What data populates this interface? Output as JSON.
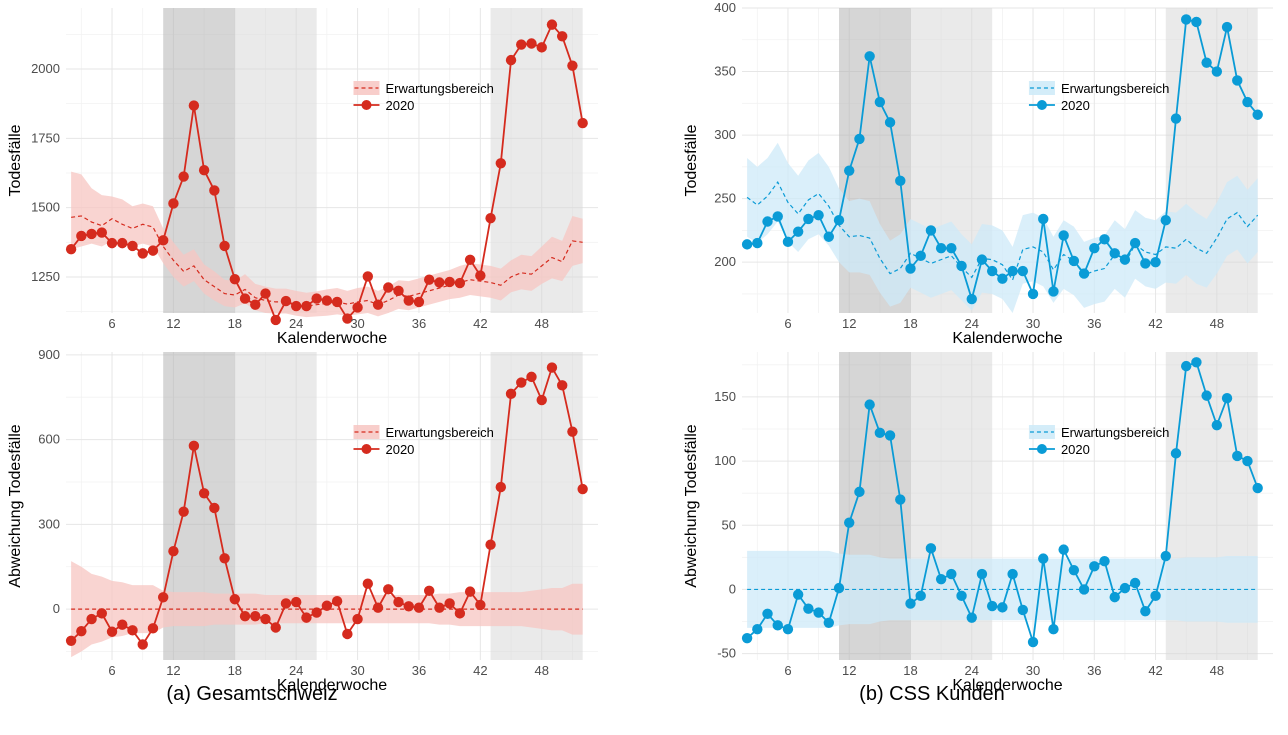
{
  "captions": {
    "left": "(a) Gesamtschweiz",
    "right": "(b) CSS Kunden"
  },
  "chart_data": [
    {
      "type": "line",
      "panel": "top-left",
      "xlabel": "Kalenderwoche",
      "ylabel": "Todesfälle",
      "xlim": [
        1.5,
        53.5
      ],
      "ylim": [
        1120,
        2220
      ],
      "xticks": [
        6,
        12,
        18,
        24,
        30,
        36,
        42,
        48
      ],
      "yticks": [
        1250,
        1500,
        1750,
        2000
      ],
      "color": "#d52b1e",
      "band_color": "#f7c6c2",
      "shaded_regions": [
        {
          "from": 11,
          "to": 18,
          "shade": "dark"
        },
        {
          "from": 18,
          "to": 26,
          "shade": "light"
        },
        {
          "from": 43,
          "to": 52,
          "shade": "light"
        }
      ],
      "legend": {
        "band": "Erwartungsbereich",
        "line": "2020",
        "position": "center-right"
      },
      "series": [
        {
          "name": "2020",
          "x": [
            2,
            3,
            4,
            5,
            6,
            7,
            8,
            9,
            10,
            11,
            12,
            13,
            14,
            15,
            16,
            17,
            18,
            19,
            20,
            21,
            22,
            23,
            24,
            25,
            26,
            27,
            28,
            29,
            30,
            31,
            32,
            33,
            34,
            35,
            36,
            37,
            38,
            39,
            40,
            41,
            42,
            43,
            44,
            45,
            46,
            47,
            48,
            49,
            50,
            51,
            52
          ],
          "values": [
            1350,
            1398,
            1405,
            1410,
            1372,
            1372,
            1362,
            1335,
            1345,
            1382,
            1515,
            1612,
            1868,
            1635,
            1562,
            1362,
            1242,
            1172,
            1150,
            1190,
            1095,
            1163,
            1145,
            1145,
            1172,
            1165,
            1160,
            1100,
            1140,
            1252,
            1150,
            1212,
            1200,
            1165,
            1160,
            1240,
            1230,
            1232,
            1228,
            1312,
            1255,
            1462,
            1660,
            2032,
            2088,
            2092,
            2078,
            2160,
            2118,
            2012,
            1805
          ]
        }
      ],
      "expectation": {
        "x": [
          2,
          3,
          4,
          5,
          6,
          7,
          8,
          9,
          10,
          11,
          12,
          13,
          14,
          15,
          16,
          17,
          18,
          19,
          20,
          21,
          22,
          23,
          24,
          25,
          26,
          27,
          28,
          29,
          30,
          31,
          32,
          33,
          34,
          35,
          36,
          37,
          38,
          39,
          40,
          41,
          42,
          43,
          44,
          45,
          46,
          47,
          48,
          49,
          50,
          51,
          52
        ],
        "mean": [
          1465,
          1470,
          1448,
          1435,
          1460,
          1440,
          1425,
          1440,
          1430,
          1360,
          1310,
          1270,
          1290,
          1240,
          1215,
          1190,
          1185,
          1205,
          1175,
          1165,
          1160,
          1160,
          1152,
          1145,
          1150,
          1155,
          1160,
          1152,
          1160,
          1165,
          1150,
          1165,
          1185,
          1180,
          1190,
          1200,
          1210,
          1220,
          1230,
          1240,
          1235,
          1230,
          1220,
          1250,
          1265,
          1260,
          1290,
          1320,
          1305,
          1380,
          1375
        ],
        "lower": [
          1350,
          1360,
          1370,
          1360,
          1380,
          1380,
          1360,
          1370,
          1360,
          1300,
          1250,
          1215,
          1235,
          1190,
          1165,
          1145,
          1140,
          1155,
          1130,
          1120,
          1118,
          1118,
          1110,
          1105,
          1108,
          1110,
          1115,
          1110,
          1115,
          1120,
          1108,
          1120,
          1135,
          1130,
          1140,
          1150,
          1160,
          1170,
          1175,
          1185,
          1180,
          1175,
          1165,
          1195,
          1205,
          1200,
          1225,
          1245,
          1235,
          1290,
          1300
        ],
        "upper": [
          1630,
          1620,
          1570,
          1545,
          1540,
          1530,
          1505,
          1515,
          1505,
          1425,
          1375,
          1330,
          1350,
          1295,
          1270,
          1240,
          1235,
          1260,
          1225,
          1215,
          1208,
          1208,
          1200,
          1193,
          1198,
          1205,
          1210,
          1200,
          1210,
          1215,
          1200,
          1215,
          1238,
          1235,
          1245,
          1255,
          1265,
          1275,
          1290,
          1300,
          1295,
          1290,
          1280,
          1310,
          1330,
          1325,
          1360,
          1395,
          1380,
          1470,
          1460
        ]
      }
    },
    {
      "type": "line",
      "panel": "bottom-left",
      "xlabel": "Kalenderwoche",
      "ylabel": "Abweichung Todesfälle",
      "xlim": [
        1.5,
        53.5
      ],
      "ylim": [
        -180,
        910
      ],
      "xticks": [
        6,
        12,
        18,
        24,
        30,
        36,
        42,
        48
      ],
      "yticks": [
        0,
        300,
        600,
        900
      ],
      "color": "#d52b1e",
      "band_color": "#f7c6c2",
      "shaded_regions": [
        {
          "from": 11,
          "to": 18,
          "shade": "dark"
        },
        {
          "from": 18,
          "to": 26,
          "shade": "light"
        },
        {
          "from": 43,
          "to": 52,
          "shade": "light"
        }
      ],
      "legend": {
        "band": "Erwartungsbereich",
        "line": "2020",
        "position": "center-right"
      },
      "series": [
        {
          "name": "2020",
          "x": [
            2,
            3,
            4,
            5,
            6,
            7,
            8,
            9,
            10,
            11,
            12,
            13,
            14,
            15,
            16,
            17,
            18,
            19,
            20,
            21,
            22,
            23,
            24,
            25,
            26,
            27,
            28,
            29,
            30,
            31,
            32,
            33,
            34,
            35,
            36,
            37,
            38,
            39,
            40,
            41,
            42,
            43,
            44,
            45,
            46,
            47,
            48,
            49,
            50,
            51,
            52
          ],
          "values": [
            -112,
            -78,
            -35,
            -15,
            -80,
            -55,
            -75,
            -125,
            -68,
            42,
            205,
            345,
            578,
            410,
            358,
            180,
            35,
            -25,
            -25,
            -35,
            -65,
            20,
            25,
            -30,
            -12,
            12,
            28,
            -88,
            -35,
            90,
            5,
            70,
            25,
            10,
            5,
            65,
            5,
            20,
            -15,
            62,
            15,
            228,
            432,
            762,
            802,
            822,
            740,
            855,
            792,
            628,
            425
          ]
        }
      ],
      "expectation": {
        "mean": 0,
        "half_width": [
          170,
          150,
          125,
          115,
          100,
          95,
          85,
          85,
          85,
          65,
          60,
          60,
          60,
          60,
          55,
          55,
          55,
          55,
          55,
          50,
          50,
          50,
          50,
          50,
          50,
          50,
          50,
          50,
          50,
          50,
          50,
          50,
          50,
          50,
          50,
          50,
          55,
          55,
          60,
          60,
          60,
          60,
          60,
          60,
          60,
          65,
          70,
          75,
          75,
          90,
          90
        ]
      }
    },
    {
      "type": "line",
      "panel": "top-right",
      "xlabel": "Kalenderwoche",
      "ylabel": "Todesfälle",
      "xlim": [
        1.5,
        53.5
      ],
      "ylim": [
        160,
        400
      ],
      "xticks": [
        6,
        12,
        18,
        24,
        30,
        36,
        42,
        48
      ],
      "yticks": [
        200,
        250,
        300,
        350,
        400
      ],
      "color": "#0a9bd6",
      "band_color": "#cdeaf8",
      "shaded_regions": [
        {
          "from": 11,
          "to": 18,
          "shade": "dark"
        },
        {
          "from": 18,
          "to": 26,
          "shade": "light"
        },
        {
          "from": 43,
          "to": 52,
          "shade": "light"
        }
      ],
      "legend": {
        "band": "Erwartungsbereich",
        "line": "2020",
        "position": "center-right"
      },
      "series": [
        {
          "name": "2020",
          "x": [
            2,
            3,
            4,
            5,
            6,
            7,
            8,
            9,
            10,
            11,
            12,
            13,
            14,
            15,
            16,
            17,
            18,
            19,
            20,
            21,
            22,
            23,
            24,
            25,
            26,
            27,
            28,
            29,
            30,
            31,
            32,
            33,
            34,
            35,
            36,
            37,
            38,
            39,
            40,
            41,
            42,
            43,
            44,
            45,
            46,
            47,
            48,
            49,
            50,
            51,
            52
          ],
          "values": [
            214,
            215,
            232,
            236,
            216,
            224,
            234,
            237,
            220,
            233,
            272,
            297,
            362,
            326,
            310,
            264,
            195,
            205,
            225,
            211,
            211,
            197,
            171,
            202,
            193,
            187,
            193,
            193,
            175,
            234,
            177,
            221,
            201,
            191,
            211,
            218,
            207,
            202,
            215,
            199,
            200,
            233,
            313,
            391,
            389,
            357,
            350,
            385,
            343,
            326,
            316
          ]
        }
      ],
      "expectation": {
        "x": [
          2,
          3,
          4,
          5,
          6,
          7,
          8,
          9,
          10,
          11,
          12,
          13,
          14,
          15,
          16,
          17,
          18,
          19,
          20,
          21,
          22,
          23,
          24,
          25,
          26,
          27,
          28,
          29,
          30,
          31,
          32,
          33,
          34,
          35,
          36,
          37,
          38,
          39,
          40,
          41,
          42,
          43,
          44,
          45,
          46,
          47,
          48,
          49,
          50,
          51,
          52
        ],
        "mean": [
          251,
          245,
          252,
          263,
          247,
          238,
          249,
          254,
          244,
          229,
          220,
          221,
          219,
          203,
          191,
          195,
          207,
          203,
          199,
          202,
          205,
          196,
          188,
          203,
          202,
          198,
          186,
          210,
          212,
          208,
          194,
          206,
          201,
          190,
          193,
          195,
          206,
          199,
          214,
          208,
          206,
          212,
          211,
          218,
          211,
          207,
          219,
          234,
          239,
          228,
          237
        ],
        "lower": [
          220,
          215,
          222,
          232,
          216,
          208,
          218,
          222,
          213,
          200,
          192,
          192,
          190,
          176,
          165,
          168,
          180,
          176,
          172,
          175,
          178,
          170,
          162,
          176,
          175,
          171,
          160,
          183,
          185,
          181,
          168,
          179,
          174,
          164,
          167,
          169,
          179,
          172,
          187,
          181,
          179,
          184,
          183,
          190,
          183,
          180,
          191,
          205,
          210,
          199,
          208
        ],
        "upper": [
          282,
          275,
          282,
          294,
          278,
          268,
          280,
          286,
          275,
          258,
          248,
          250,
          248,
          230,
          217,
          222,
          234,
          230,
          226,
          229,
          232,
          222,
          214,
          230,
          229,
          225,
          212,
          237,
          239,
          235,
          220,
          233,
          228,
          216,
          219,
          221,
          233,
          226,
          241,
          235,
          233,
          240,
          239,
          246,
          239,
          234,
          247,
          263,
          268,
          257,
          266
        ]
      }
    },
    {
      "type": "line",
      "panel": "bottom-right",
      "xlabel": "Kalenderwoche",
      "ylabel": "Abweichung Todesfälle",
      "xlim": [
        1.5,
        53.5
      ],
      "ylim": [
        -55,
        185
      ],
      "xticks": [
        6,
        12,
        18,
        24,
        30,
        36,
        42,
        48
      ],
      "yticks": [
        -50,
        0,
        50,
        100,
        150
      ],
      "color": "#0a9bd6",
      "band_color": "#cdeaf8",
      "shaded_regions": [
        {
          "from": 11,
          "to": 18,
          "shade": "dark"
        },
        {
          "from": 18,
          "to": 26,
          "shade": "light"
        },
        {
          "from": 43,
          "to": 52,
          "shade": "light"
        }
      ],
      "legend": {
        "band": "Erwartungsbereich",
        "line": "2020",
        "position": "center-right"
      },
      "series": [
        {
          "name": "2020",
          "x": [
            2,
            3,
            4,
            5,
            6,
            7,
            8,
            9,
            10,
            11,
            12,
            13,
            14,
            15,
            16,
            17,
            18,
            19,
            20,
            21,
            22,
            23,
            24,
            25,
            26,
            27,
            28,
            29,
            30,
            31,
            32,
            33,
            34,
            35,
            36,
            37,
            38,
            39,
            40,
            41,
            42,
            43,
            44,
            45,
            46,
            47,
            48,
            49,
            50,
            51,
            52
          ],
          "values": [
            -38,
            -31,
            -19,
            -28,
            -31,
            -4,
            -15,
            -18,
            -26,
            1,
            52,
            76,
            144,
            122,
            120,
            70,
            -11,
            -5,
            32,
            8,
            12,
            -5,
            -22,
            12,
            -13,
            -14,
            12,
            -16,
            -41,
            24,
            -31,
            31,
            15,
            0,
            18,
            22,
            -6,
            1,
            5,
            -17,
            -5,
            26,
            106,
            174,
            177,
            151,
            128,
            149,
            104,
            100,
            79
          ]
        }
      ],
      "expectation": {
        "mean": 0,
        "half_width": [
          30,
          30,
          30,
          30,
          30,
          30,
          30,
          30,
          30,
          28,
          27,
          27,
          27,
          25,
          24,
          24,
          24,
          24,
          24,
          24,
          24,
          24,
          24,
          24,
          24,
          24,
          24,
          24,
          24,
          24,
          24,
          24,
          24,
          24,
          24,
          24,
          24,
          24,
          24,
          24,
          24,
          24,
          24,
          25,
          25,
          25,
          25,
          26,
          26,
          26,
          26
        ]
      }
    }
  ]
}
